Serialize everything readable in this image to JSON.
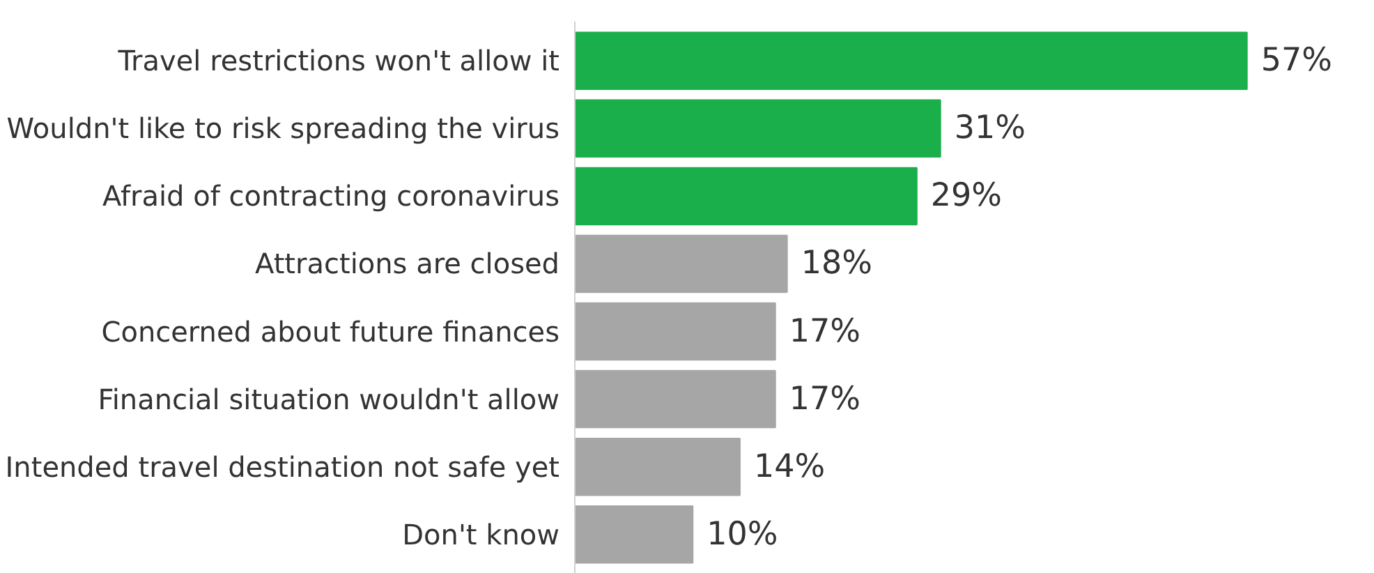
{
  "chart_data": {
    "type": "bar",
    "orientation": "horizontal",
    "categories": [
      "Travel restrictions won't allow it",
      "Wouldn't like to risk spreading the virus",
      "Afraid of contracting coronavirus",
      "Attractions are closed",
      "Concerned about future finances",
      "Financial situation wouldn't allow",
      "Intended travel destination not safe yet",
      "Don't know"
    ],
    "values": [
      57,
      31,
      29,
      18,
      17,
      17,
      14,
      10
    ],
    "colors": [
      "#1aaf4b",
      "#1aaf4b",
      "#1aaf4b",
      "#a6a6a6",
      "#a6a6a6",
      "#a6a6a6",
      "#a6a6a6",
      "#a6a6a6"
    ],
    "value_labels": [
      "57%",
      "31%",
      "29%",
      "18%",
      "17%",
      "17%",
      "14%",
      "10%"
    ],
    "tick_labels": "y",
    "grid": false
  }
}
